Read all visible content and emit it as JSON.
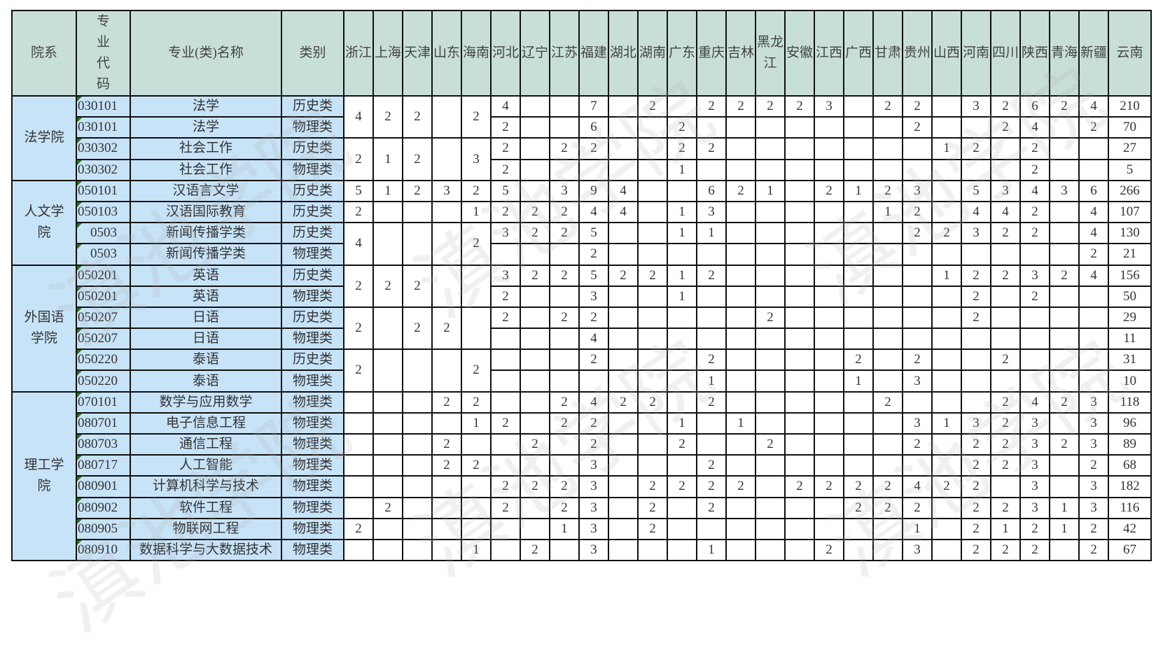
{
  "watermark": "滇池学院",
  "headers": {
    "college": "院系",
    "code": "专业代码",
    "name": "专业(类)名称",
    "type": "类别"
  },
  "provinces": [
    "浙江",
    "上海",
    "天津",
    "山东",
    "海南",
    "河北",
    "辽宁",
    "江苏",
    "福建",
    "湖北",
    "湖南",
    "广东",
    "重庆",
    "吉林",
    "黑龙江",
    "安徽",
    "江西",
    "广西",
    "甘肃",
    "贵州",
    "山西",
    "河南",
    "四川",
    "陕西",
    "青海",
    "新疆",
    "云南"
  ],
  "colors": {
    "header_bg": "#c8dfd9",
    "label_bg": "#c7e3f8",
    "comment_marker": "#1b7a1b"
  },
  "colleges": [
    {
      "name": "法学院",
      "rows": [
        {
          "code": "030101",
          "name": "法学",
          "type": "历史类",
          "merge_with_next": true,
          "counts": {
            "浙江": 4,
            "上海": 2,
            "天津": 2,
            "海南": 2,
            "河北": 4,
            "福建": 7,
            "湖南": 2,
            "重庆": 2,
            "吉林": 2,
            "黑龙江": 2,
            "安徽": 2,
            "江西": 3,
            "甘肃": 2,
            "贵州": 2,
            "河南": 3,
            "四川": 2,
            "陕西": 6,
            "青海": 2,
            "新疆": 4,
            "云南": 210
          }
        },
        {
          "code": "030101",
          "name": "法学",
          "type": "物理类",
          "counts": {
            "河北": 2,
            "福建": 6,
            "广东": 2,
            "贵州": 2,
            "四川": 2,
            "陕西": 4,
            "新疆": 2,
            "云南": 70
          }
        },
        {
          "code": "030302",
          "name": "社会工作",
          "type": "历史类",
          "merge_with_next": true,
          "counts": {
            "浙江": 2,
            "上海": 1,
            "天津": 2,
            "海南": 3,
            "河北": 2,
            "江苏": 2,
            "福建": 2,
            "广东": 2,
            "重庆": 2,
            "山西": 1,
            "河南": 2,
            "陕西": 2,
            "云南": 27
          }
        },
        {
          "code": "030302",
          "name": "社会工作",
          "type": "物理类",
          "counts": {
            "河北": 2,
            "广东": 1,
            "陕西": 2,
            "云南": 5
          }
        }
      ]
    },
    {
      "name": "人文学院",
      "rows": [
        {
          "code": "050101",
          "name": "汉语言文学",
          "type": "历史类",
          "counts": {
            "浙江": 5,
            "上海": 1,
            "天津": 2,
            "山东": 3,
            "海南": 2,
            "河北": 5,
            "江苏": 3,
            "福建": 9,
            "湖北": 4,
            "重庆": 6,
            "吉林": 2,
            "黑龙江": 1,
            "江西": 2,
            "广西": 1,
            "甘肃": 2,
            "贵州": 3,
            "河南": 5,
            "四川": 3,
            "陕西": 4,
            "青海": 3,
            "新疆": 6,
            "云南": 266
          }
        },
        {
          "code": "050103",
          "name": "汉语国际教育",
          "type": "历史类",
          "counts": {
            "浙江": 2,
            "海南": 1,
            "河北": 2,
            "辽宁": 2,
            "江苏": 2,
            "福建": 4,
            "湖北": 4,
            "广东": 1,
            "重庆": 3,
            "甘肃": 1,
            "贵州": 2,
            "河南": 4,
            "四川": 4,
            "陕西": 2,
            "新疆": 4,
            "云南": 107
          }
        },
        {
          "code": "0503",
          "name": "新闻传播学类",
          "type": "历史类",
          "merge_with_next": true,
          "counts": {
            "浙江": 4,
            "海南": 2,
            "河北": 3,
            "辽宁": 2,
            "江苏": 2,
            "福建": 5,
            "广东": 1,
            "重庆": 1,
            "贵州": 2,
            "山西": 2,
            "河南": 3,
            "四川": 2,
            "陕西": 2,
            "新疆": 4,
            "云南": 130
          }
        },
        {
          "code": "0503",
          "name": "新闻传播学类",
          "type": "物理类",
          "counts": {
            "福建": 2,
            "新疆": 2,
            "云南": 21
          }
        }
      ]
    },
    {
      "name": "外国语学院",
      "rows": [
        {
          "code": "050201",
          "name": "英语",
          "type": "历史类",
          "merge_with_next": true,
          "counts": {
            "浙江": 2,
            "上海": 2,
            "天津": 2,
            "河北": 3,
            "辽宁": 2,
            "江苏": 2,
            "福建": 5,
            "湖北": 2,
            "湖南": 2,
            "广东": 1,
            "重庆": 2,
            "山西": 1,
            "河南": 2,
            "四川": 2,
            "陕西": 3,
            "青海": 2,
            "新疆": 4,
            "云南": 156
          }
        },
        {
          "code": "050201",
          "name": "英语",
          "type": "物理类",
          "counts": {
            "河北": 2,
            "福建": 3,
            "广东": 1,
            "河南": 2,
            "陕西": 2,
            "云南": 50
          }
        },
        {
          "code": "050207",
          "name": "日语",
          "type": "历史类",
          "merge_with_next": true,
          "counts": {
            "浙江": 2,
            "天津": 2,
            "山东": 2,
            "河北": 2,
            "江苏": 2,
            "福建": 2,
            "黑龙江": 2,
            "河南": 2,
            "云南": 29
          }
        },
        {
          "code": "050207",
          "name": "日语",
          "type": "物理类",
          "counts": {
            "福建": 4,
            "云南": 11
          }
        },
        {
          "code": "050220",
          "name": "泰语",
          "type": "历史类",
          "merge_with_next": true,
          "counts": {
            "浙江": 2,
            "海南": 2,
            "福建": 2,
            "重庆": 2,
            "广西": 2,
            "贵州": 2,
            "四川": 2,
            "云南": 31
          }
        },
        {
          "code": "050220",
          "name": "泰语",
          "type": "物理类",
          "counts": {
            "重庆": 1,
            "广西": 1,
            "贵州": 3,
            "云南": 10
          }
        }
      ]
    },
    {
      "name": "理工学院",
      "rows": [
        {
          "code": "070101",
          "name": "数学与应用数学",
          "type": "物理类",
          "counts": {
            "山东": 2,
            "海南": 2,
            "江苏": 2,
            "福建": 4,
            "湖北": 2,
            "湖南": 2,
            "重庆": 2,
            "甘肃": 2,
            "四川": 2,
            "陕西": 4,
            "青海": 2,
            "新疆": 3,
            "云南": 118
          }
        },
        {
          "code": "080701",
          "name": "电子信息工程",
          "type": "物理类",
          "counts": {
            "海南": 1,
            "河北": 2,
            "江苏": 2,
            "福建": 2,
            "广东": 1,
            "吉林": 1,
            "贵州": 3,
            "山西": 1,
            "河南": 3,
            "四川": 2,
            "陕西": 3,
            "新疆": 3,
            "云南": 96
          }
        },
        {
          "code": "080703",
          "name": "通信工程",
          "type": "物理类",
          "counts": {
            "山东": 2,
            "辽宁": 2,
            "福建": 2,
            "广东": 2,
            "黑龙江": 2,
            "贵州": 2,
            "河南": 2,
            "四川": 2,
            "陕西": 3,
            "青海": 2,
            "新疆": 3,
            "云南": 89
          }
        },
        {
          "code": "080717",
          "name": "人工智能",
          "type": "物理类",
          "counts": {
            "山东": 2,
            "海南": 2,
            "福建": 3,
            "重庆": 2,
            "河南": 2,
            "四川": 2,
            "陕西": 3,
            "新疆": 2,
            "云南": 68
          }
        },
        {
          "code": "080901",
          "name": "计算机科学与技术",
          "type": "物理类",
          "counts": {
            "河北": 2,
            "辽宁": 2,
            "江苏": 2,
            "福建": 3,
            "湖南": 2,
            "广东": 2,
            "重庆": 2,
            "吉林": 2,
            "安徽": 2,
            "江西": 2,
            "广西": 2,
            "甘肃": 2,
            "贵州": 4,
            "山西": 2,
            "河南": 2,
            "陕西": 3,
            "新疆": 3,
            "云南": 182
          }
        },
        {
          "code": "080902",
          "name": "软件工程",
          "type": "物理类",
          "counts": {
            "上海": 2,
            "河北": 2,
            "江苏": 2,
            "福建": 3,
            "湖南": 2,
            "重庆": 2,
            "广西": 2,
            "甘肃": 2,
            "贵州": 2,
            "河南": 2,
            "四川": 2,
            "陕西": 3,
            "青海": 1,
            "新疆": 3,
            "云南": 116
          }
        },
        {
          "code": "080905",
          "name": "物联网工程",
          "type": "物理类",
          "counts": {
            "浙江": 2,
            "江苏": 1,
            "福建": 3,
            "湖南": 2,
            "贵州": 1,
            "河南": 2,
            "四川": 1,
            "陕西": 2,
            "青海": 1,
            "新疆": 2,
            "云南": 42
          }
        },
        {
          "code": "080910",
          "name": "数据科学与大数据技术",
          "type": "物理类",
          "counts": {
            "海南": 1,
            "辽宁": 2,
            "福建": 3,
            "重庆": 1,
            "江西": 2,
            "贵州": 3,
            "河南": 2,
            "四川": 2,
            "陕西": 2,
            "新疆": 2,
            "云南": 67
          }
        }
      ]
    }
  ]
}
